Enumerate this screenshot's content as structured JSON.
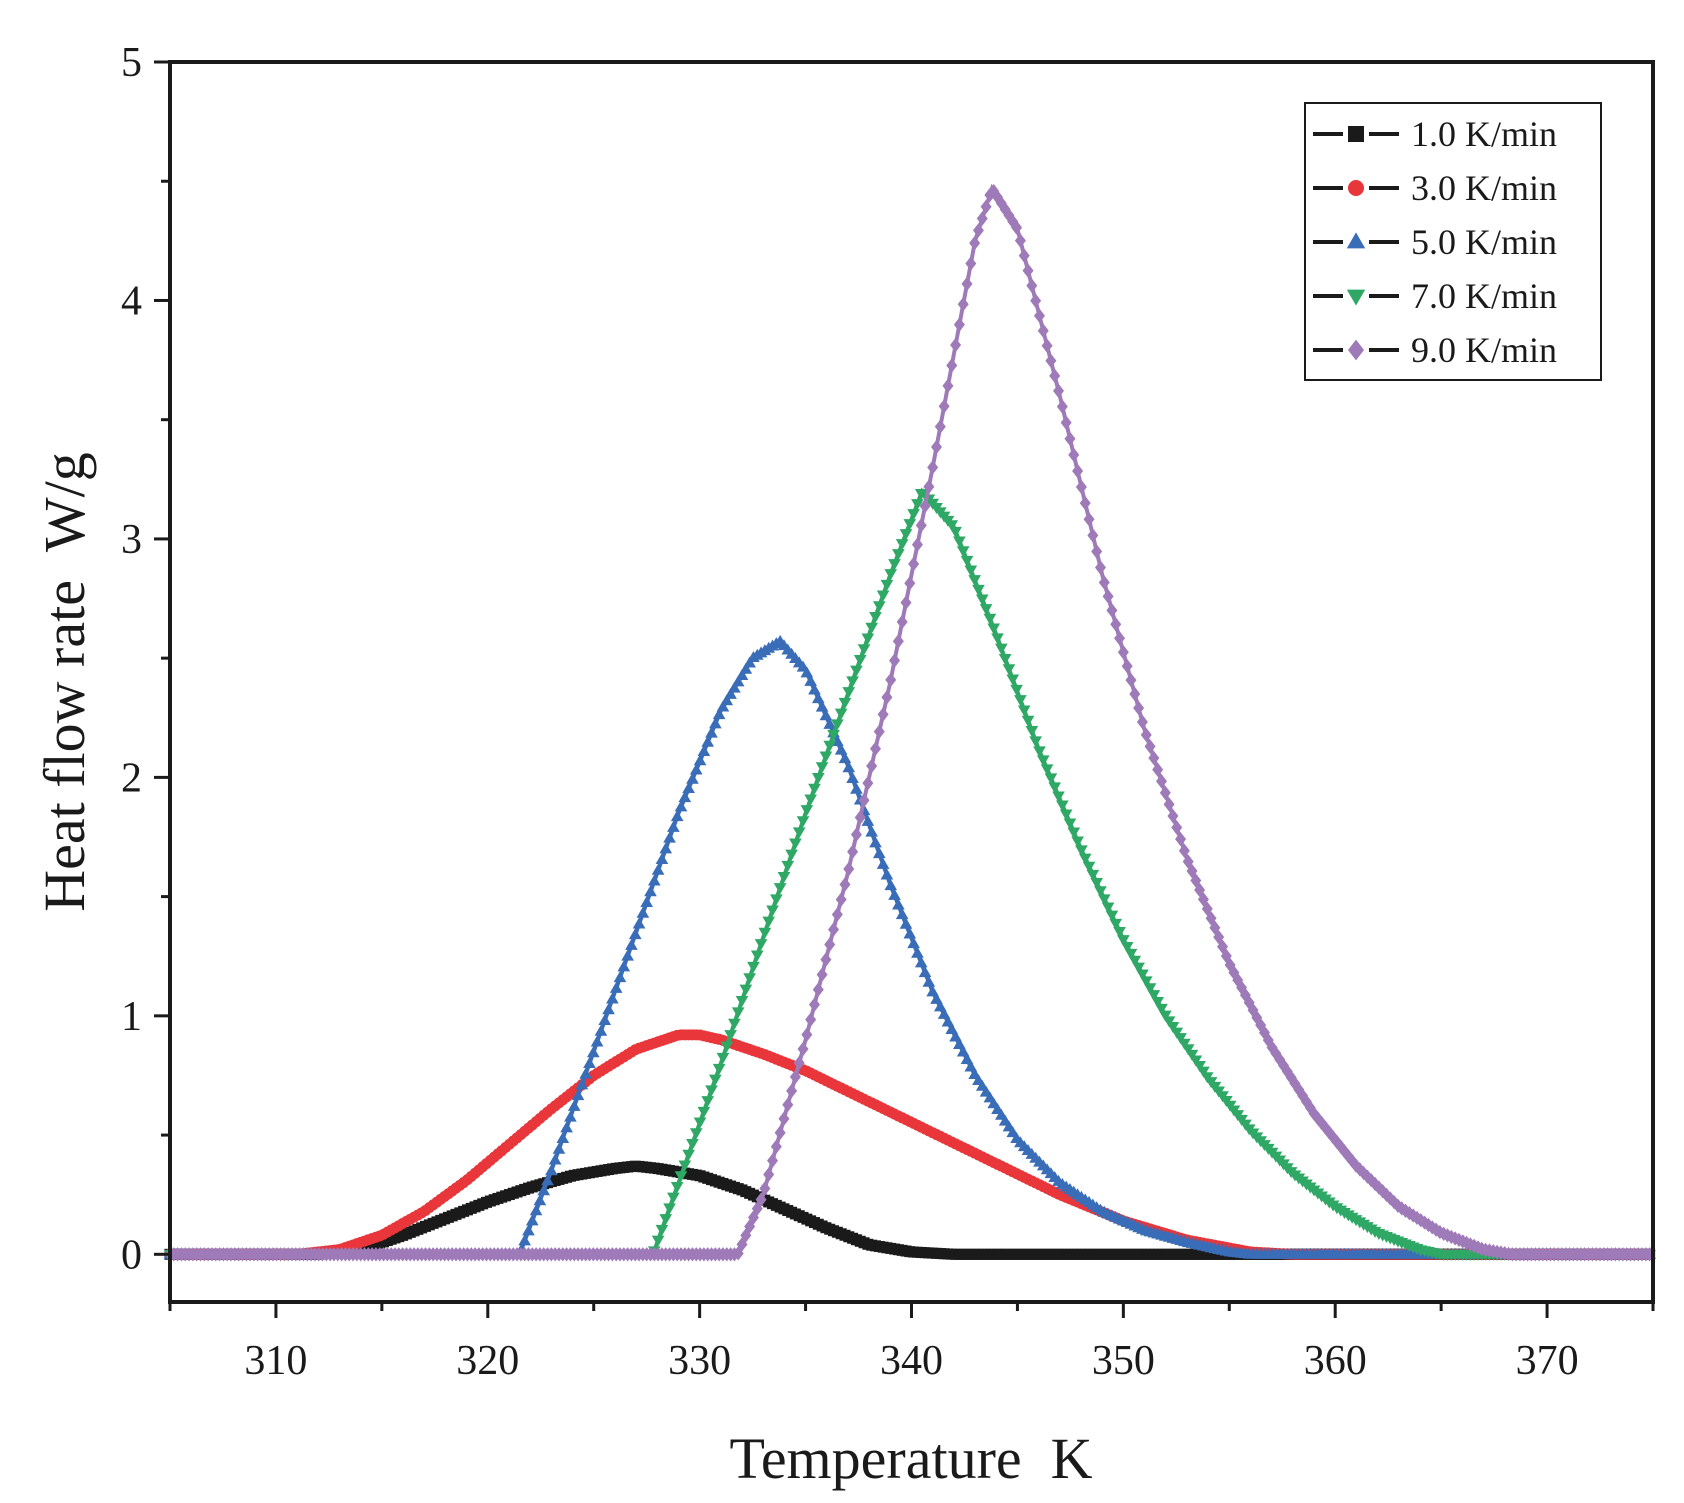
{
  "chart_data": {
    "type": "scatter",
    "title": "",
    "xlabel": "Temperature  K",
    "ylabel": "Heat flow rate  W/g",
    "xlim": [
      305,
      375
    ],
    "ylim": [
      -0.2,
      5
    ],
    "xticks": [
      "310",
      "320",
      "330",
      "340",
      "350",
      "360",
      "370"
    ],
    "yticks": [
      "0",
      "1",
      "2",
      "3",
      "4",
      "5"
    ],
    "legend_position": "top-right",
    "series": [
      {
        "name": "1.0 K/min",
        "color": "#1a1a1a",
        "marker": "square",
        "x": [
          305,
          312,
          314,
          316,
          318,
          320,
          322,
          324,
          326,
          327,
          328,
          330,
          332,
          334,
          336,
          338,
          340,
          342,
          350,
          360,
          375
        ],
        "y": [
          0,
          0,
          0.02,
          0.08,
          0.15,
          0.22,
          0.28,
          0.33,
          0.36,
          0.37,
          0.36,
          0.33,
          0.27,
          0.19,
          0.11,
          0.04,
          0.01,
          0,
          0,
          0,
          0
        ]
      },
      {
        "name": "3.0 K/min",
        "color": "#e8363a",
        "marker": "circle",
        "x": [
          305,
          311,
          313,
          315,
          317,
          319,
          321,
          323,
          325,
          327,
          329,
          330,
          331,
          333,
          335,
          338,
          341,
          344,
          347,
          350,
          353,
          356,
          358,
          375
        ],
        "y": [
          0,
          0,
          0.02,
          0.08,
          0.18,
          0.31,
          0.46,
          0.61,
          0.75,
          0.86,
          0.92,
          0.92,
          0.9,
          0.84,
          0.77,
          0.64,
          0.51,
          0.38,
          0.25,
          0.14,
          0.06,
          0.01,
          0,
          0
        ]
      },
      {
        "name": "5.0 K/min",
        "color": "#3a6db8",
        "marker": "triangle-up",
        "x": [
          305,
          321.5,
          323,
          325,
          327,
          329,
          331,
          332.5,
          333.8,
          335,
          337,
          339,
          341,
          343,
          345,
          347,
          349,
          351,
          353,
          355,
          356,
          375
        ],
        "y": [
          0,
          0,
          0.35,
          0.85,
          1.35,
          1.85,
          2.28,
          2.5,
          2.57,
          2.45,
          2.05,
          1.55,
          1.1,
          0.75,
          0.48,
          0.3,
          0.18,
          0.1,
          0.05,
          0.01,
          0,
          0
        ]
      },
      {
        "name": "7.0 K/min",
        "color": "#2fa866",
        "marker": "triangle-down",
        "x": [
          305,
          327.8,
          329,
          331,
          333,
          335,
          337,
          339,
          340.5,
          342,
          344,
          346,
          348,
          350,
          352,
          354,
          356,
          358,
          360,
          362,
          364,
          365,
          375
        ],
        "y": [
          0,
          0,
          0.3,
          0.8,
          1.33,
          1.85,
          2.35,
          2.85,
          3.2,
          3.05,
          2.6,
          2.12,
          1.7,
          1.32,
          1.0,
          0.74,
          0.52,
          0.34,
          0.2,
          0.09,
          0.02,
          0,
          0
        ]
      },
      {
        "name": "9.0 K/min",
        "color": "#9f7ab8",
        "marker": "diamond",
        "x": [
          305,
          331.8,
          333,
          335,
          337,
          339,
          341,
          343,
          343.8,
          345,
          347,
          349,
          351,
          353,
          355,
          357,
          359,
          361,
          363,
          365,
          367,
          368.3,
          375
        ],
        "y": [
          0,
          0,
          0.25,
          0.9,
          1.6,
          2.4,
          3.3,
          4.25,
          4.47,
          4.3,
          3.6,
          2.85,
          2.2,
          1.66,
          1.22,
          0.87,
          0.59,
          0.37,
          0.2,
          0.09,
          0.02,
          0,
          0
        ]
      }
    ]
  }
}
